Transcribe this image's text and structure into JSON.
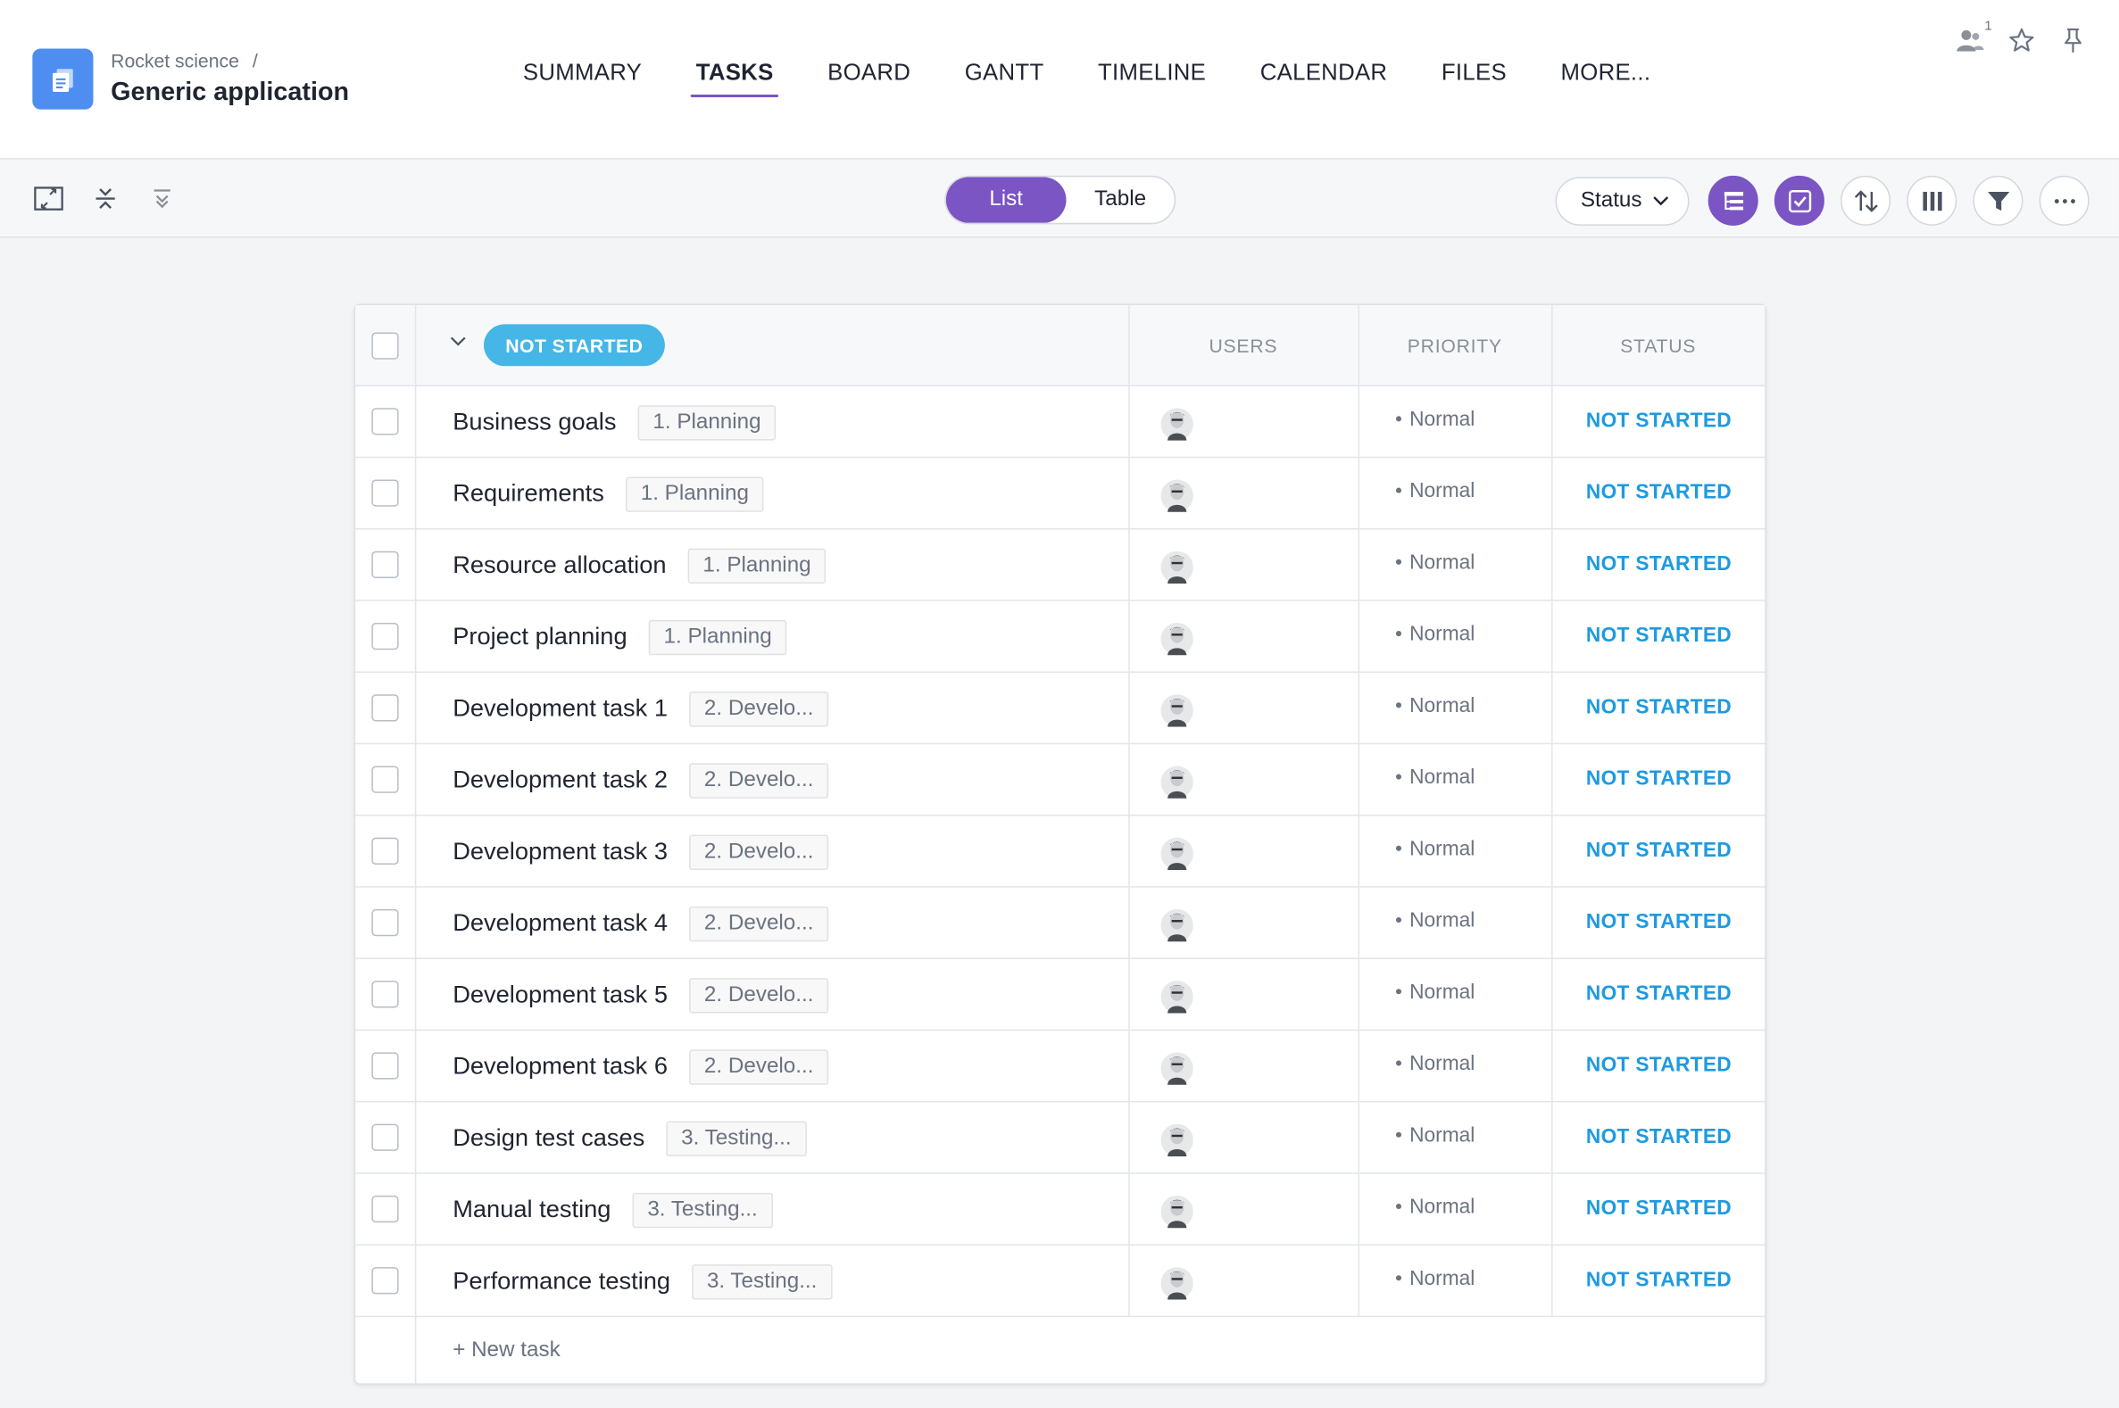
{
  "header": {
    "breadcrumb": "Rocket science",
    "breadcrumb_separator": "/",
    "title": "Generic application",
    "nav": [
      {
        "label": "SUMMARY",
        "active": false
      },
      {
        "label": "TASKS",
        "active": true
      },
      {
        "label": "BOARD",
        "active": false
      },
      {
        "label": "GANTT",
        "active": false
      },
      {
        "label": "TIMELINE",
        "active": false
      },
      {
        "label": "CALENDAR",
        "active": false
      },
      {
        "label": "FILES",
        "active": false
      },
      {
        "label": "MORE...",
        "active": false
      }
    ],
    "members_count": "1"
  },
  "toolbar": {
    "view_options": [
      "List",
      "Table"
    ],
    "active_view": "List",
    "group_select": "Status"
  },
  "table": {
    "group_label": "NOT STARTED",
    "columns": {
      "users": "USERS",
      "priority": "PRIORITY",
      "status": "STATUS"
    },
    "rows": [
      {
        "name": "Business goals",
        "tag": "1. Planning",
        "priority": "Normal",
        "status": "NOT STARTED"
      },
      {
        "name": "Requirements",
        "tag": "1. Planning",
        "priority": "Normal",
        "status": "NOT STARTED"
      },
      {
        "name": "Resource allocation",
        "tag": "1. Planning",
        "priority": "Normal",
        "status": "NOT STARTED"
      },
      {
        "name": "Project planning",
        "tag": "1. Planning",
        "priority": "Normal",
        "status": "NOT STARTED"
      },
      {
        "name": "Development task 1",
        "tag": "2. Develo...",
        "priority": "Normal",
        "status": "NOT STARTED"
      },
      {
        "name": "Development task 2",
        "tag": "2. Develo...",
        "priority": "Normal",
        "status": "NOT STARTED"
      },
      {
        "name": "Development task 3",
        "tag": "2. Develo...",
        "priority": "Normal",
        "status": "NOT STARTED"
      },
      {
        "name": "Development task 4",
        "tag": "2. Develo...",
        "priority": "Normal",
        "status": "NOT STARTED"
      },
      {
        "name": "Development task 5",
        "tag": "2. Develo...",
        "priority": "Normal",
        "status": "NOT STARTED"
      },
      {
        "name": "Development task 6",
        "tag": "2. Develo...",
        "priority": "Normal",
        "status": "NOT STARTED"
      },
      {
        "name": "Design test cases",
        "tag": "3. Testing...",
        "priority": "Normal",
        "status": "NOT STARTED"
      },
      {
        "name": "Manual testing",
        "tag": "3. Testing...",
        "priority": "Normal",
        "status": "NOT STARTED"
      },
      {
        "name": "Performance testing",
        "tag": "3. Testing...",
        "priority": "Normal",
        "status": "NOT STARTED"
      }
    ],
    "new_task_label": "+ New task"
  },
  "colors": {
    "accent": "#7a55c3",
    "app_icon": "#4d8ef0",
    "group_pill": "#45b6e6",
    "status_text": "#1e9ae0"
  }
}
